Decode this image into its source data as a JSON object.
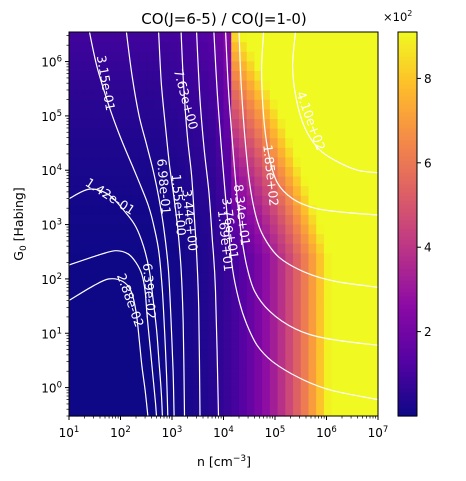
{
  "chart_data": {
    "type": "heatmap",
    "title": "CO(J=6-5) / CO(J=1-0)",
    "xlabel": "n [cm$^{-3}$]",
    "xlabel_main": "n [cm",
    "xlabel_sup": "−3",
    "xlabel_close": "]",
    "ylabel": "G$_0$ [Habing]",
    "ylabel_main": "G",
    "ylabel_sub": "0",
    "ylabel_rest": " [Habing]",
    "xscale": "log",
    "yscale": "log",
    "xlim": [
      10,
      10000000
    ],
    "ylim": [
      0.3,
      3500000
    ],
    "x_ticks": [
      {
        "value": 10,
        "base": "10",
        "exp": "1"
      },
      {
        "value": 100,
        "base": "10",
        "exp": "2"
      },
      {
        "value": 1000,
        "base": "10",
        "exp": "3"
      },
      {
        "value": 10000,
        "base": "10",
        "exp": "4"
      },
      {
        "value": 100000,
        "base": "10",
        "exp": "5"
      },
      {
        "value": 1000000,
        "base": "10",
        "exp": "6"
      },
      {
        "value": 10000000,
        "base": "10",
        "exp": "7"
      }
    ],
    "y_ticks": [
      {
        "value": 1,
        "base": "10",
        "exp": "0"
      },
      {
        "value": 10,
        "base": "10",
        "exp": "1"
      },
      {
        "value": 100,
        "base": "10",
        "exp": "2"
      },
      {
        "value": 1000,
        "base": "10",
        "exp": "3"
      },
      {
        "value": 10000,
        "base": "10",
        "exp": "4"
      },
      {
        "value": 100000,
        "base": "10",
        "exp": "5"
      },
      {
        "value": 1000000,
        "base": "10",
        "exp": "6"
      }
    ],
    "colormap": "plasma",
    "colorbar": {
      "range": [
        0,
        910
      ],
      "ticks": [
        {
          "value": 200,
          "label": "2"
        },
        {
          "value": 400,
          "label": "4"
        },
        {
          "value": 600,
          "label": "6"
        },
        {
          "value": 800,
          "label": "8"
        }
      ],
      "multiplier_base": "×10",
      "multiplier_exp": "2"
    },
    "contour_color": "#ffffff",
    "contour_levels": [
      0.0288,
      0.0639,
      0.142,
      0.315,
      0.698,
      1.55,
      3.44,
      7.63,
      16.9,
      37.6,
      83.4,
      185,
      410
    ],
    "contours": [
      {
        "label": "2.88e-02",
        "points": [
          [
            10,
            40
          ],
          [
            30,
            75
          ],
          [
            60,
            100
          ],
          [
            110,
            90
          ],
          [
            160,
            60
          ],
          [
            200,
            25
          ],
          [
            230,
            8
          ],
          [
            260,
            2.5
          ],
          [
            300,
            0.9
          ],
          [
            340,
            0.3
          ]
        ]
      },
      {
        "label": "6.39e-02",
        "points": [
          [
            10,
            180
          ],
          [
            40,
            280
          ],
          [
            80,
            330
          ],
          [
            140,
            290
          ],
          [
            200,
            200
          ],
          [
            260,
            120
          ],
          [
            300,
            60
          ],
          [
            330,
            20
          ],
          [
            380,
            5
          ],
          [
            430,
            1.5
          ],
          [
            480,
            0.5
          ],
          [
            500,
            0.3
          ]
        ]
      },
      {
        "label": "1.42e-01",
        "points": [
          [
            10,
            3000
          ],
          [
            25,
            4500
          ],
          [
            60,
            3500
          ],
          [
            130,
            1600
          ],
          [
            200,
            900
          ],
          [
            280,
            400
          ],
          [
            360,
            150
          ],
          [
            420,
            50
          ],
          [
            500,
            12
          ],
          [
            560,
            3
          ],
          [
            620,
            0.8
          ],
          [
            650,
            0.3
          ]
        ]
      },
      {
        "label": "3.15e-01",
        "points": [
          [
            25,
            3500000
          ],
          [
            35,
            800000
          ],
          [
            60,
            150000
          ],
          [
            100,
            40000
          ],
          [
            170,
            12000
          ],
          [
            250,
            5000
          ],
          [
            350,
            2200
          ],
          [
            450,
            900
          ],
          [
            560,
            300
          ],
          [
            650,
            60
          ],
          [
            720,
            10
          ],
          [
            780,
            2
          ],
          [
            830,
            0.3
          ]
        ]
      },
      {
        "label": "6.98e-01",
        "points": [
          [
            130,
            3500000
          ],
          [
            170,
            500000
          ],
          [
            230,
            100000
          ],
          [
            320,
            30000
          ],
          [
            430,
            10000
          ],
          [
            560,
            3000
          ],
          [
            700,
            800
          ],
          [
            850,
            150
          ],
          [
            950,
            20
          ],
          [
            1050,
            2
          ],
          [
            1100,
            0.3
          ]
        ]
      },
      {
        "label": "1.55e+00",
        "points": [
          [
            550,
            3500000
          ],
          [
            620,
            400000
          ],
          [
            750,
            60000
          ],
          [
            900,
            12000
          ],
          [
            1100,
            3000
          ],
          [
            1300,
            800
          ],
          [
            1500,
            150
          ],
          [
            1650,
            15
          ],
          [
            1750,
            0.3
          ]
        ]
      },
      {
        "label": "3.44e+00",
        "points": [
          [
            1500,
            3500000
          ],
          [
            1700,
            300000
          ],
          [
            2000,
            40000
          ],
          [
            2400,
            8000
          ],
          [
            2700,
            1500
          ],
          [
            3000,
            300
          ],
          [
            3300,
            30
          ],
          [
            3500,
            0.3
          ]
        ]
      },
      {
        "label": "7.63e+00",
        "points": [
          [
            3000,
            3500000
          ],
          [
            3500,
            200000
          ],
          [
            4200,
            25000
          ],
          [
            5200,
            4000
          ],
          [
            6000,
            600
          ],
          [
            7000,
            60
          ],
          [
            8000,
            0.3
          ]
        ]
      },
      {
        "label": "1.69e+01",
        "points": [
          [
            6500,
            3500000
          ],
          [
            7500,
            300000
          ],
          [
            9000,
            30000
          ],
          [
            10500,
            5000
          ],
          [
            12500,
            800
          ],
          [
            15000,
            150
          ],
          [
            20000,
            40
          ],
          [
            28000,
            15
          ],
          [
            45000,
            6
          ],
          [
            90000,
            3
          ],
          [
            300000,
            1.5
          ],
          [
            1200000,
            0.9
          ],
          [
            10000000,
            0.6
          ]
        ]
      },
      {
        "label": "3.76e+01",
        "points": [
          [
            11000,
            3500000
          ],
          [
            12500,
            300000
          ],
          [
            15000,
            30000
          ],
          [
            18000,
            4000
          ],
          [
            22000,
            700
          ],
          [
            28000,
            180
          ],
          [
            40000,
            60
          ],
          [
            80000,
            25
          ],
          [
            250000,
            12
          ],
          [
            1000000,
            8
          ],
          [
            10000000,
            6
          ]
        ]
      },
      {
        "label": "8.34e+01",
        "points": [
          [
            20000,
            3500000
          ],
          [
            22000,
            400000
          ],
          [
            26000,
            40000
          ],
          [
            32000,
            6000
          ],
          [
            42000,
            1500
          ],
          [
            60000,
            600
          ],
          [
            120000,
            250
          ],
          [
            400000,
            130
          ],
          [
            1500000,
            90
          ],
          [
            10000000,
            70
          ]
        ]
      },
      {
        "label": "1.85e+02",
        "points": [
          [
            60000,
            3500000
          ],
          [
            55000,
            700000
          ],
          [
            60000,
            100000
          ],
          [
            75000,
            20000
          ],
          [
            110000,
            6000
          ],
          [
            220000,
            3000
          ],
          [
            600000,
            2000
          ],
          [
            2000000,
            1700
          ],
          [
            10000000,
            1500
          ]
        ]
      },
      {
        "label": "4.10e+02",
        "points": [
          [
            250000,
            3500000
          ],
          [
            220000,
            800000
          ],
          [
            260000,
            200000
          ],
          [
            380000,
            60000
          ],
          [
            700000,
            25000
          ],
          [
            1500000,
            15000
          ],
          [
            4000000,
            10000
          ],
          [
            10000000,
            9000
          ]
        ]
      }
    ],
    "contour_labels": [
      {
        "text": "3.15e-01",
        "x": 50,
        "y": 400000,
        "angle": 80
      },
      {
        "text": "7.63e+00",
        "x": 1800,
        "y": 200000,
        "angle": 75
      },
      {
        "text": "4.10e+02",
        "x": 480000,
        "y": 80000,
        "angle": 70
      },
      {
        "text": "1.85e+02",
        "x": 80000,
        "y": 8000,
        "angle": 84
      },
      {
        "text": "1.42e-01",
        "x": 62,
        "y": 3200,
        "angle": 33
      },
      {
        "text": "6.98e-01",
        "x": 670,
        "y": 5000,
        "angle": 85
      },
      {
        "text": "1.55e+00",
        "x": 1300,
        "y": 2300,
        "angle": 85
      },
      {
        "text": "3.44e+00",
        "x": 2150,
        "y": 1200,
        "angle": 84
      },
      {
        "text": "8.34e+01",
        "x": 22000,
        "y": 1500,
        "angle": 83
      },
      {
        "text": "3.76e+01",
        "x": 13000,
        "y": 850,
        "angle": 83
      },
      {
        "text": "1.69e+01",
        "x": 10500,
        "y": 500,
        "angle": 84
      },
      {
        "text": "2.88e-02",
        "x": 150,
        "y": 40,
        "angle": 70
      },
      {
        "text": "6.39e-02",
        "x": 350,
        "y": 60,
        "angle": 86
      }
    ]
  }
}
